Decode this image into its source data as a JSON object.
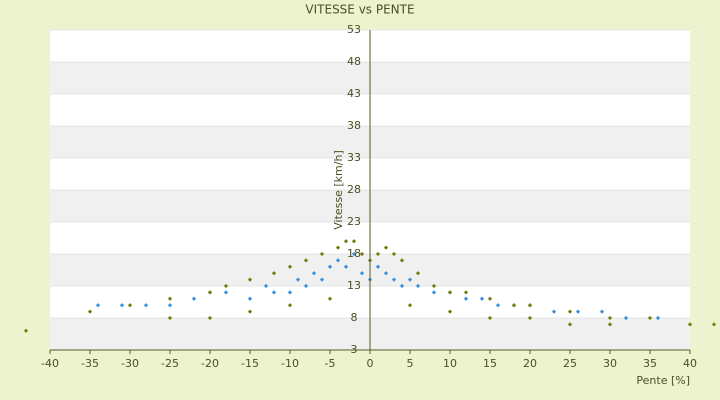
{
  "chart_data": {
    "type": "scatter",
    "title": "VITESSE vs PENTE",
    "x_label": "Pente [%]",
    "y_label": "Vitesse [km/h]",
    "xlim": [
      -40,
      40
    ],
    "xticks": [
      -40,
      -35,
      -30,
      -25,
      -20,
      -15,
      -10,
      -5,
      0,
      5,
      10,
      15,
      20,
      25,
      30,
      35,
      40
    ],
    "ylim": [
      3,
      53
    ],
    "yticks": [
      3,
      8,
      13,
      18,
      23,
      28,
      33,
      38,
      43,
      48,
      53
    ],
    "series": [
      {
        "color": "#3a8fd8",
        "x": [
          -34,
          -31,
          -28,
          -25,
          -22,
          -20,
          -18,
          -15,
          -13,
          -12,
          -10,
          -9,
          -8,
          -7,
          -6,
          -5,
          -4,
          -3,
          -2,
          -1,
          0,
          1,
          2,
          3,
          4,
          5,
          6,
          8,
          10,
          12,
          14,
          16,
          18,
          20,
          23,
          26,
          29,
          32,
          36
        ],
        "values": [
          10,
          10,
          10,
          10,
          11,
          12,
          12,
          11,
          13,
          12,
          12,
          14,
          13,
          15,
          14,
          16,
          17,
          16,
          18,
          15,
          14,
          16,
          15,
          14,
          13,
          14,
          13,
          12,
          12,
          11,
          11,
          10,
          10,
          10,
          9,
          9,
          9,
          8,
          8
        ]
      },
      {
        "color": "#7a7a10",
        "x": [
          -35,
          -30,
          -25,
          -20,
          -18,
          -15,
          -12,
          -10,
          -8,
          -6,
          -4,
          -3,
          -2,
          -1,
          0,
          1,
          2,
          3,
          4,
          6,
          8,
          10,
          12,
          15,
          18,
          20,
          25,
          30,
          35,
          40,
          -25,
          -20,
          -15,
          -10,
          -5,
          5,
          10,
          15,
          20,
          25,
          30,
          -43,
          43
        ],
        "values": [
          9,
          10,
          11,
          12,
          13,
          14,
          15,
          16,
          17,
          18,
          19,
          20,
          20,
          18,
          17,
          18,
          19,
          18,
          17,
          15,
          13,
          12,
          12,
          11,
          10,
          10,
          9,
          8,
          8,
          7,
          8,
          8,
          9,
          10,
          11,
          10,
          9,
          8,
          8,
          7,
          7,
          6,
          7
        ]
      }
    ]
  }
}
